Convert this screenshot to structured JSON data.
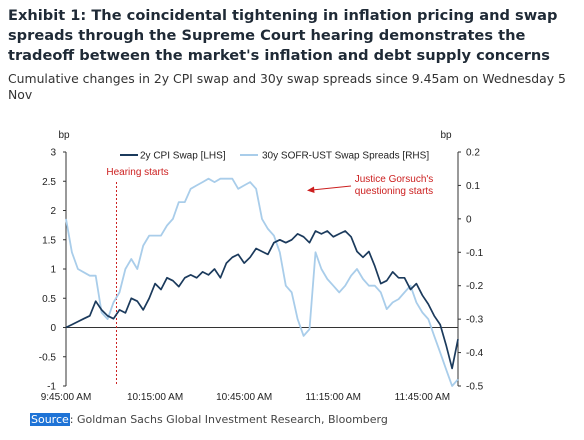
{
  "header": {
    "title": "Exhibit 1: The coincidental tightening in inflation pricing and swap spreads through the Supreme Court hearing demonstrates the tradeoff between the market's inflation and debt supply concerns",
    "subtitle": "Cumulative changes in 2y CPI swap and 30y swap spreads since 9.45am on Wednesday 5 Nov"
  },
  "source": {
    "label": "Source",
    "text": ": Goldman Sachs Global Investment Research, Bloomberg"
  },
  "colors": {
    "cpi": "#1b3a5c",
    "sofr": "#a9cdea",
    "annotation": "#cc1f1f"
  },
  "chart_data": {
    "type": "line",
    "left_unit": "bp",
    "right_unit": "bp",
    "x_ticks": [
      "9:45:00 AM",
      "10:15:00 AM",
      "10:45:00 AM",
      "11:15:00 AM",
      "11:45:00 AM"
    ],
    "y_left": {
      "min": -1,
      "max": 3,
      "ticks": [
        "-1",
        "-0.5",
        "0",
        "0.5",
        "1",
        "1.5",
        "2",
        "2.5",
        "3"
      ]
    },
    "y_right": {
      "min": -0.5,
      "max": 0.2,
      "ticks": [
        "-0.5",
        "-0.4",
        "-0.3",
        "-0.2",
        "-0.1",
        "0",
        "0.1",
        "0.2"
      ]
    },
    "x_range_minutes": [
      0,
      132
    ],
    "series": [
      {
        "name": "2y CPI Swap [LHS]",
        "axis": "left",
        "x": [
          0,
          2,
          4,
          6,
          8,
          10,
          12,
          14,
          16,
          18,
          20,
          22,
          24,
          26,
          28,
          30,
          32,
          34,
          36,
          38,
          40,
          42,
          44,
          46,
          48,
          50,
          52,
          54,
          56,
          58,
          60,
          62,
          64,
          66,
          68,
          70,
          72,
          74,
          76,
          78,
          80,
          82,
          84,
          86,
          88,
          90,
          92,
          94,
          96,
          98,
          100,
          102,
          104,
          106,
          108,
          110,
          112,
          114,
          116,
          118,
          120,
          122,
          124,
          126,
          128,
          130,
          132
        ],
        "values": [
          0,
          0.05,
          0.1,
          0.15,
          0.2,
          0.45,
          0.3,
          0.2,
          0.15,
          0.3,
          0.25,
          0.5,
          0.45,
          0.3,
          0.5,
          0.75,
          0.65,
          0.85,
          0.8,
          0.7,
          0.85,
          0.9,
          0.85,
          0.95,
          0.9,
          1.0,
          0.85,
          1.1,
          1.2,
          1.25,
          1.1,
          1.2,
          1.35,
          1.3,
          1.25,
          1.45,
          1.5,
          1.45,
          1.5,
          1.6,
          1.55,
          1.45,
          1.65,
          1.6,
          1.65,
          1.55,
          1.6,
          1.65,
          1.55,
          1.3,
          1.2,
          1.3,
          1.05,
          0.75,
          0.8,
          0.95,
          0.85,
          0.85,
          0.65,
          0.75,
          0.55,
          0.4,
          0.2,
          0.05,
          -0.3,
          -0.7,
          -0.2
        ]
      },
      {
        "name": "30y SOFR-UST Swap Spreads [RHS]",
        "axis": "right",
        "x": [
          0,
          2,
          4,
          6,
          8,
          10,
          12,
          14,
          16,
          18,
          20,
          22,
          24,
          26,
          28,
          30,
          32,
          34,
          36,
          38,
          40,
          42,
          44,
          46,
          48,
          50,
          52,
          54,
          56,
          58,
          60,
          62,
          64,
          66,
          68,
          70,
          72,
          74,
          76,
          78,
          80,
          82,
          84,
          86,
          88,
          90,
          92,
          94,
          96,
          98,
          100,
          102,
          104,
          106,
          108,
          110,
          112,
          114,
          116,
          118,
          120,
          122,
          124,
          126,
          128,
          130,
          132
        ],
        "values": [
          0,
          -0.1,
          -0.15,
          -0.16,
          -0.17,
          -0.17,
          -0.28,
          -0.3,
          -0.25,
          -0.22,
          -0.15,
          -0.12,
          -0.15,
          -0.08,
          -0.05,
          -0.05,
          -0.05,
          -0.02,
          0.0,
          0.05,
          0.05,
          0.09,
          0.1,
          0.11,
          0.12,
          0.11,
          0.12,
          0.12,
          0.12,
          0.09,
          0.1,
          0.11,
          0.09,
          0.0,
          -0.03,
          -0.05,
          -0.1,
          -0.2,
          -0.22,
          -0.3,
          -0.35,
          -0.33,
          -0.1,
          -0.15,
          -0.18,
          -0.2,
          -0.22,
          -0.2,
          -0.17,
          -0.15,
          -0.18,
          -0.2,
          -0.2,
          -0.22,
          -0.27,
          -0.25,
          -0.24,
          -0.22,
          -0.2,
          -0.25,
          -0.28,
          -0.3,
          -0.35,
          -0.4,
          -0.45,
          -0.5,
          -0.48
        ]
      }
    ],
    "annotations": [
      {
        "text": "Hearing starts",
        "x": 17
      },
      {
        "line1": "Justice Gorsuch's",
        "line2": "questioning starts",
        "x": 73
      }
    ]
  }
}
